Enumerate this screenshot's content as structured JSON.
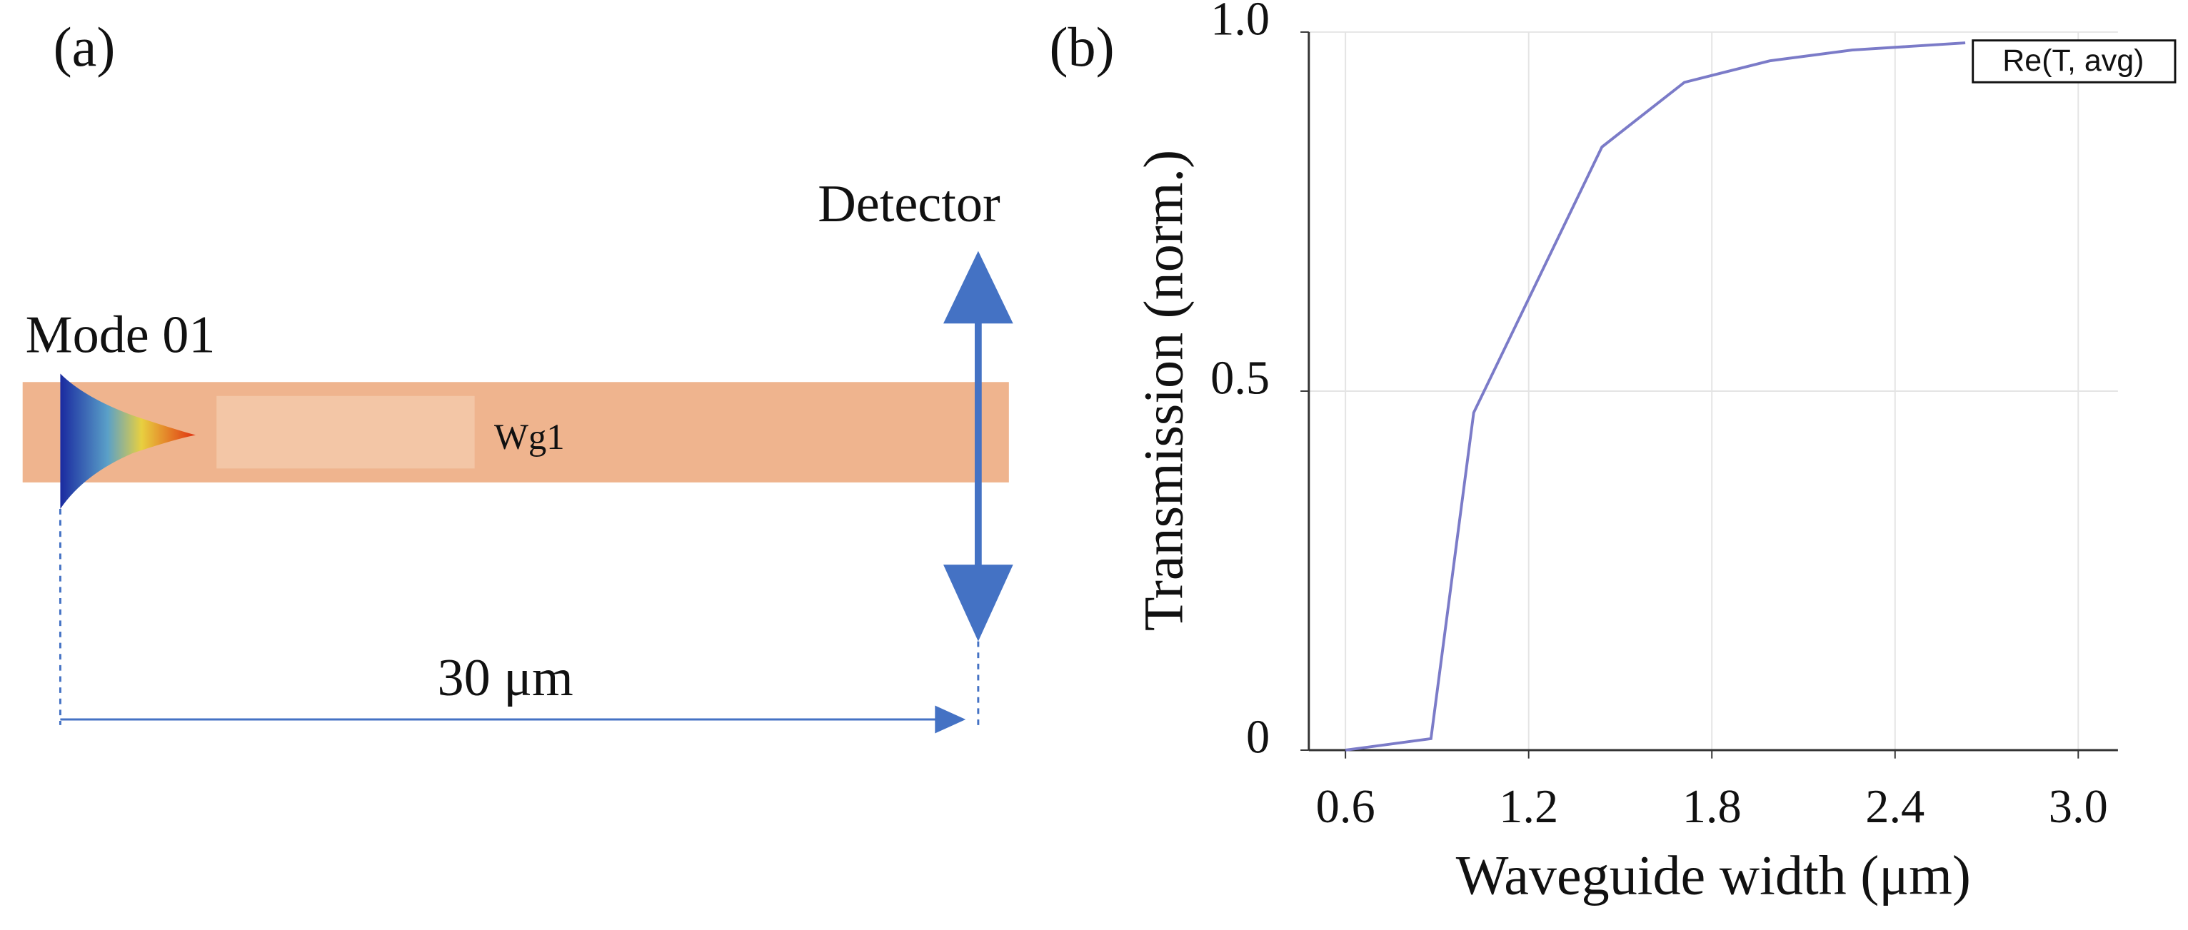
{
  "panel_a": {
    "label": "(a)",
    "source": "Mode 01",
    "detector": "Detector",
    "waveguide": "Wg1",
    "length": "30 μm"
  },
  "chart_data": {
    "type": "line",
    "panel_label": "(b)",
    "xlabel": "Waveguide width (μm)",
    "ylabel": "Transmission (norm.)",
    "x": [
      0.6,
      0.88,
      1.02,
      1.44,
      1.71,
      1.99,
      2.26,
      2.63
    ],
    "series": [
      {
        "name": "Re(T, avg)",
        "color": "#7b7bc8",
        "values": [
          0,
          0.016,
          0.47,
          0.84,
          0.93,
          0.96,
          0.975,
          0.985
        ]
      }
    ],
    "xlim": [
      0.48,
      3.13
    ],
    "xticks": [
      0.6,
      1.2,
      1.8,
      2.4,
      {
        "value": 3,
        "label": "3.0"
      }
    ],
    "ylim": [
      0,
      1
    ],
    "yticks": [
      0,
      0.5,
      {
        "value": 1,
        "label": "1.0"
      }
    ],
    "grid": true,
    "legend": "upper right"
  }
}
